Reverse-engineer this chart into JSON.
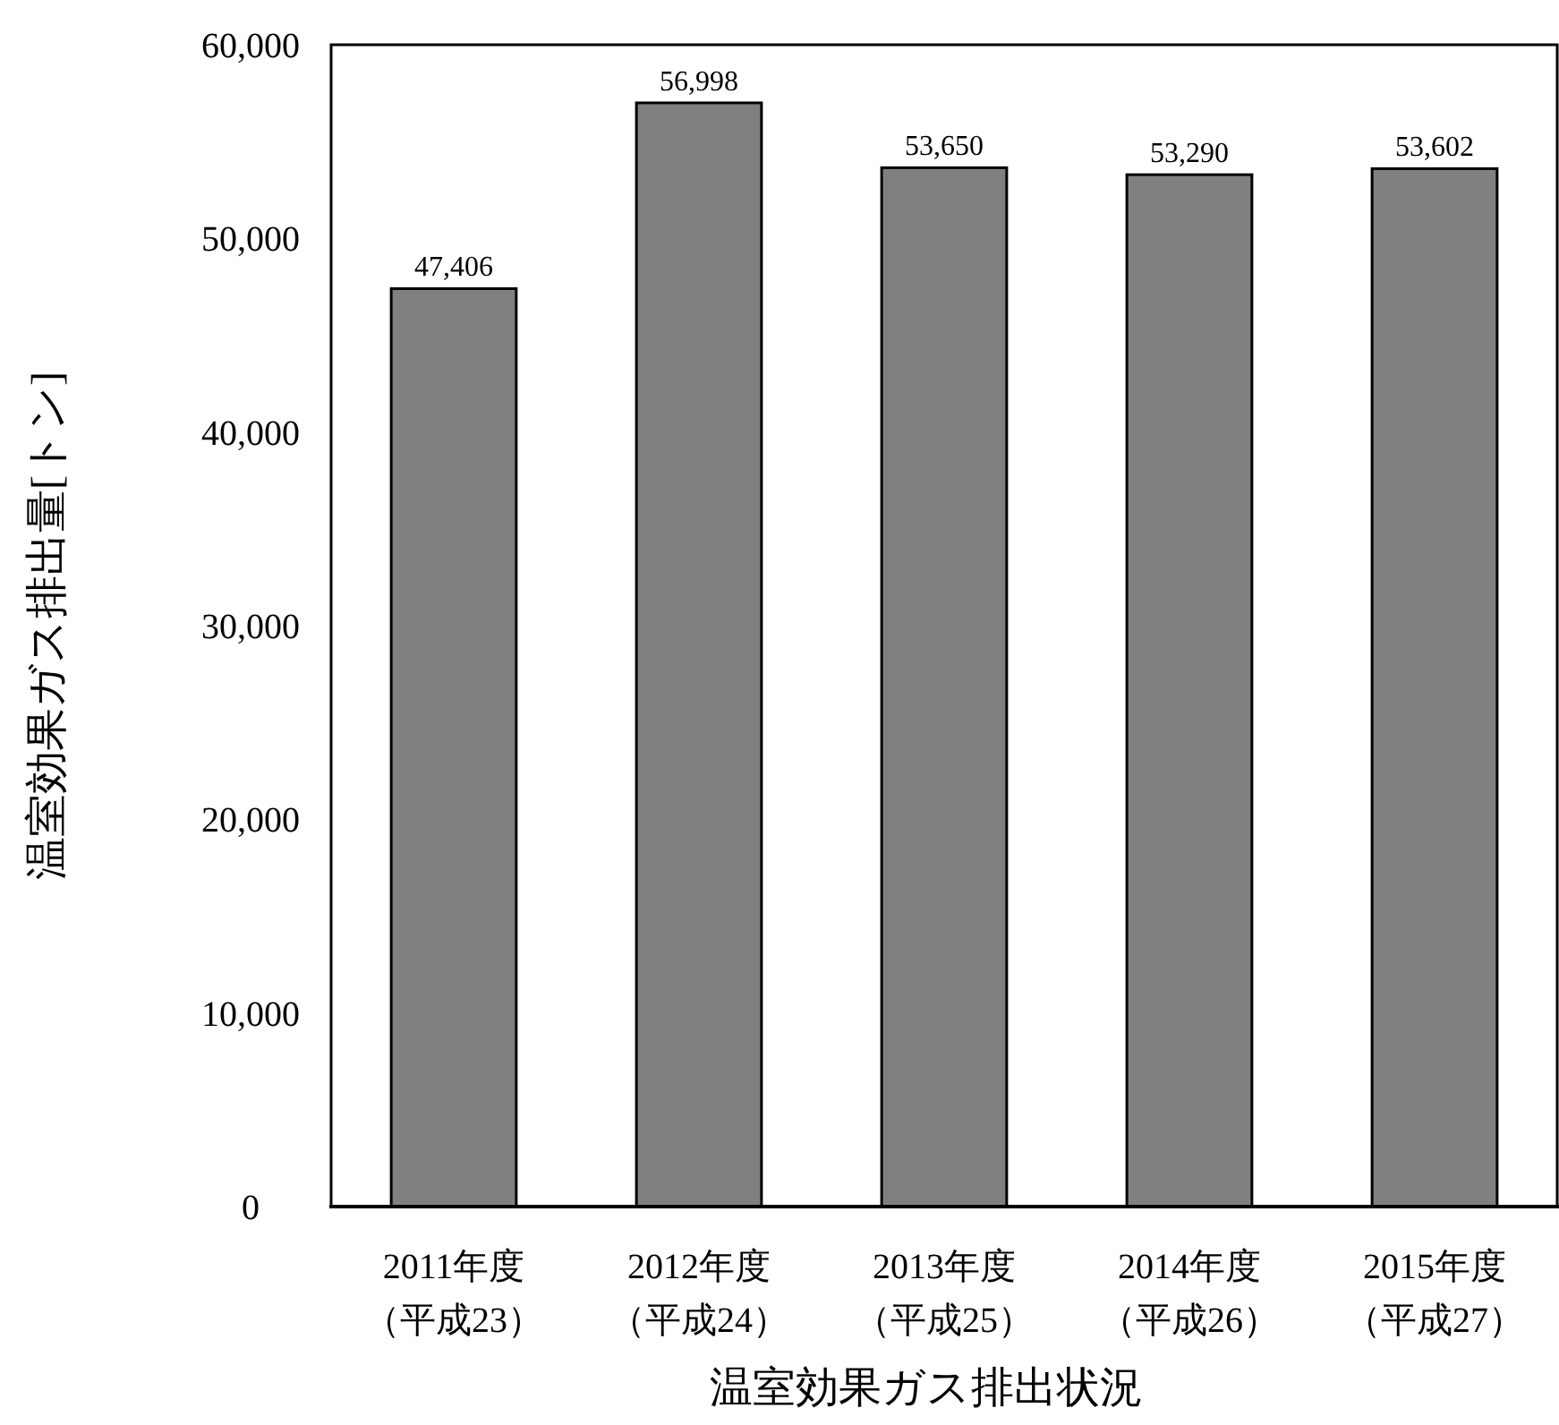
{
  "chart_data": {
    "type": "bar",
    "xlabel": "温室効果ガス排出状況",
    "ylabel": "温室効果ガス排出量[トン]",
    "categories": [
      "2011年度（平成23）",
      "2012年度（平成24）",
      "2013年度（平成25）",
      "2014年度（平成26）",
      "2015年度（平成27）"
    ],
    "values": [
      47406,
      56998,
      53650,
      53290,
      53602
    ],
    "color": "#808080",
    "value_labels": [
      "47,406",
      "56,998",
      "53,650",
      "53,290",
      "53,602"
    ],
    "ylim": [
      0,
      60000
    ],
    "yticks": [
      {
        "value": 0,
        "label": "0"
      },
      {
        "value": 10000,
        "label": "10,000"
      },
      {
        "value": 20000,
        "label": "20,000"
      },
      {
        "value": 30000,
        "label": "30,000"
      },
      {
        "value": 40000,
        "label": "40,000"
      },
      {
        "value": 50000,
        "label": "50,000"
      },
      {
        "value": 60000,
        "label": "60,000"
      }
    ],
    "grid": false
  }
}
